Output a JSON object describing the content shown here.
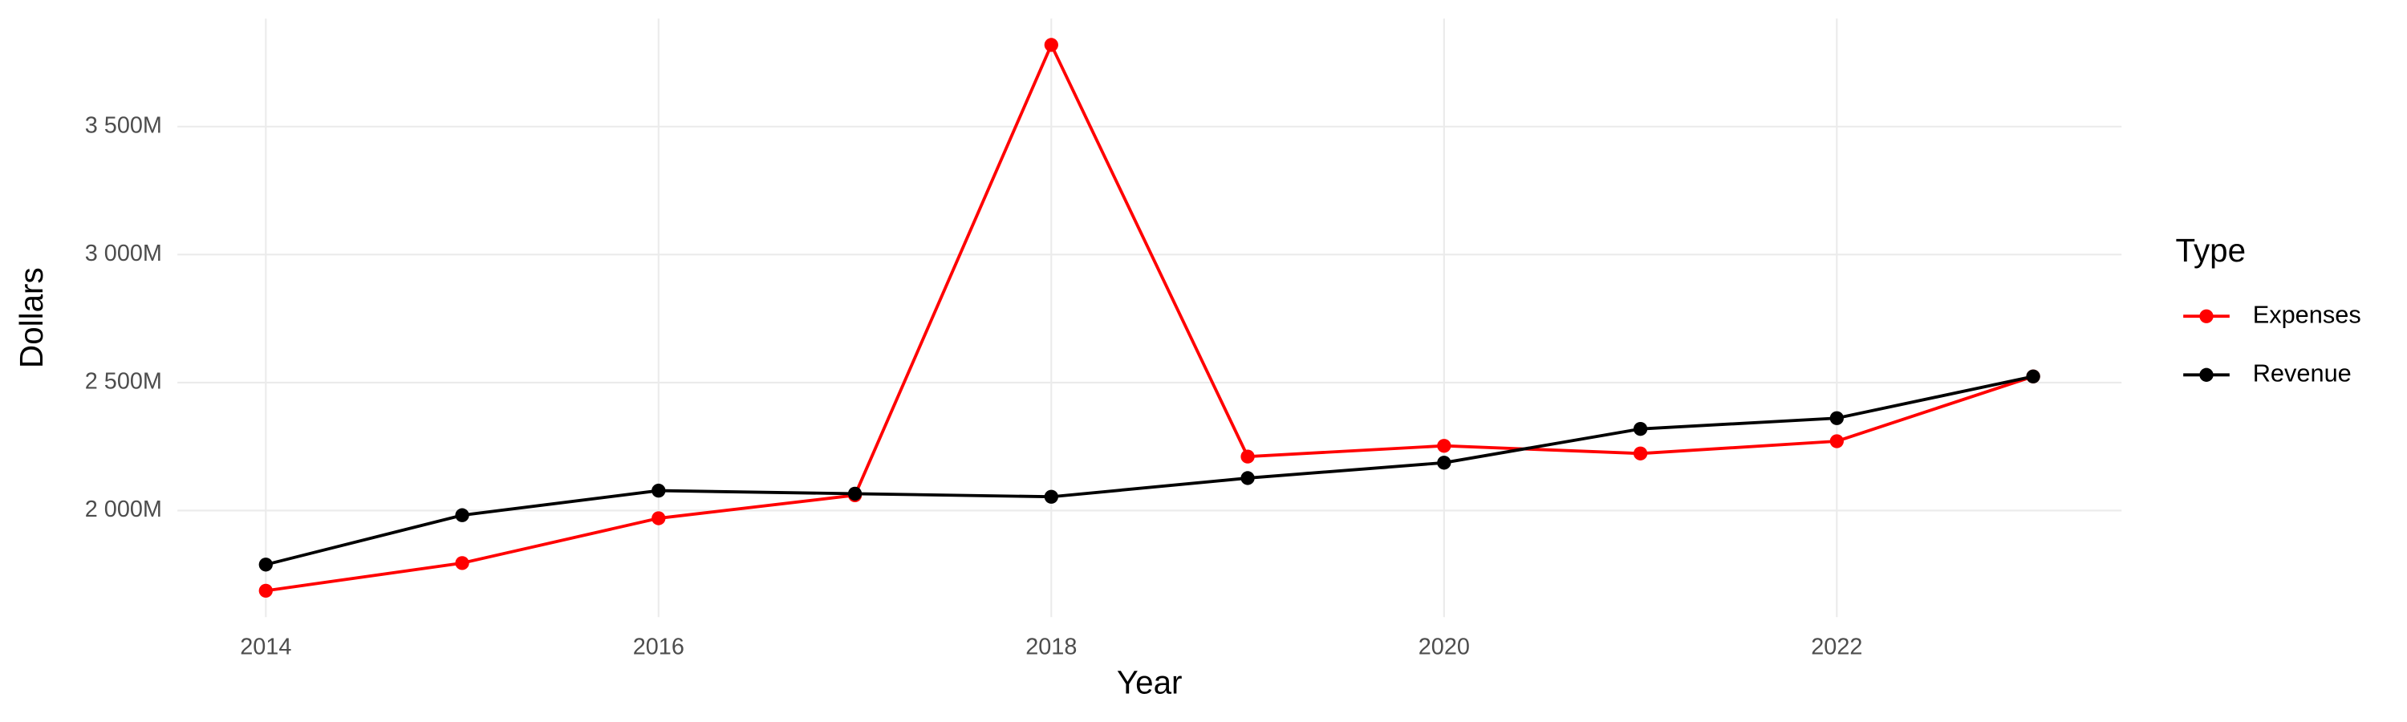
{
  "chart_data": {
    "type": "line",
    "x_label": "Year",
    "y_label": "Dollars",
    "legend_title": "Type",
    "x": [
      2014,
      2015,
      2016,
      2017,
      2018,
      2019,
      2020,
      2021,
      2022,
      2023
    ],
    "series": [
      {
        "name": "Expenses",
        "color": "#ff0000",
        "values": [
          1687,
          1795,
          1970,
          2060,
          3819,
          2211,
          2253,
          2223,
          2271,
          2524
        ]
      },
      {
        "name": "Revenue",
        "color": "#000000",
        "values": [
          1789,
          1982,
          2078,
          2066,
          2054,
          2127,
          2187,
          2319,
          2361,
          2524
        ]
      }
    ],
    "xlim": [
      2013.55,
      2023.45
    ],
    "xticks": [
      2014,
      2016,
      2018,
      2020,
      2022
    ],
    "ylim": [
      1584,
      3922
    ],
    "yticks": [
      {
        "value": 2000,
        "label": "2 000M"
      },
      {
        "value": 2500,
        "label": "2 500M"
      },
      {
        "value": 3000,
        "label": "3 000M"
      },
      {
        "value": 3500,
        "label": "3 500M"
      }
    ],
    "grid": true,
    "legend": "right"
  }
}
